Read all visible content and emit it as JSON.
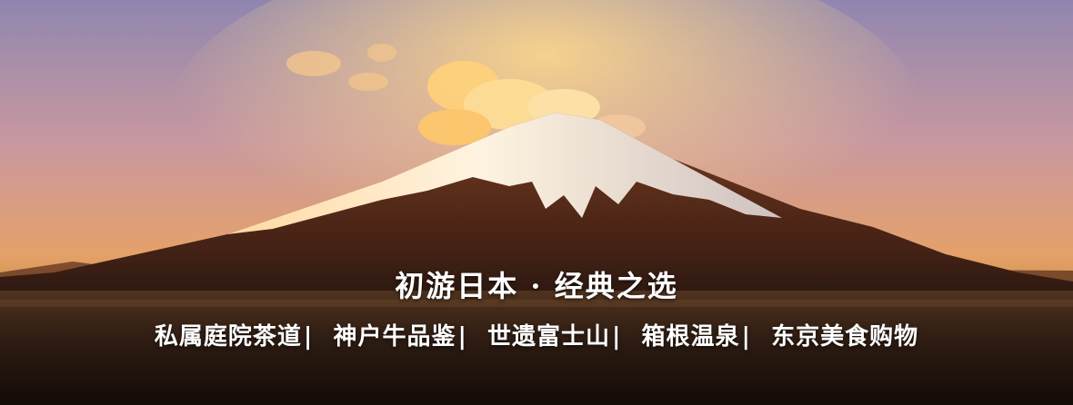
{
  "banner": {
    "headline": "初游日本 · 经典之选",
    "features": [
      "私属庭院茶道",
      "神户牛品鉴",
      "世遗富士山",
      "箱根温泉",
      "东京美食购物"
    ],
    "separator": "|"
  },
  "colors": {
    "sky_top": "#8f86b0",
    "sky_mid": "#d89a6a",
    "sky_horizon": "#e9a04a",
    "mountain": "#5a2f1c",
    "snow": "#f4e8d8",
    "ground": "#3a2418"
  }
}
